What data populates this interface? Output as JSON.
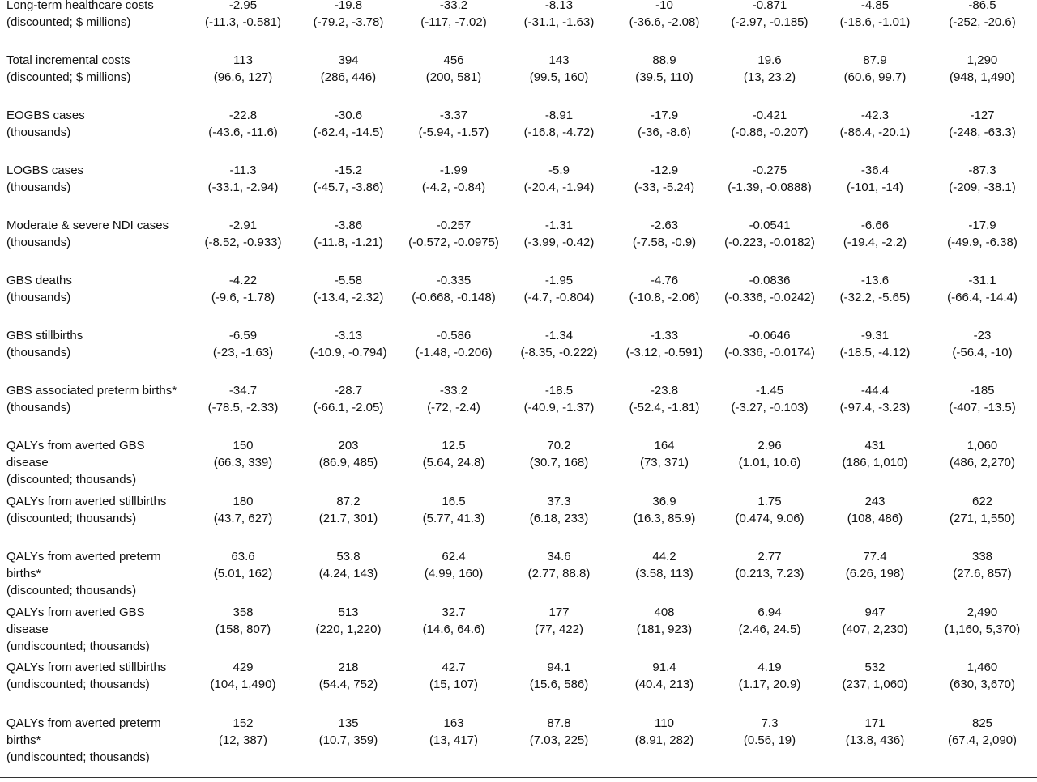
{
  "rows": [
    {
      "label": [
        "Long-term healthcare costs",
        "(discounted; $ millions)"
      ],
      "cells": [
        [
          "-2.95",
          "(-11.3, -0.581)"
        ],
        [
          "-19.8",
          "(-79.2, -3.78)"
        ],
        [
          "-33.2",
          "(-117, -7.02)"
        ],
        [
          "-8.13",
          "(-31.1, -1.63)"
        ],
        [
          "-10",
          "(-36.6, -2.08)"
        ],
        [
          "-0.871",
          "(-2.97, -0.185)"
        ],
        [
          "-4.85",
          "(-18.6, -1.01)"
        ],
        [
          "-86.5",
          "(-252, -20.6)"
        ]
      ]
    },
    {
      "label": [
        "Total incremental costs",
        "(discounted; $ millions)"
      ],
      "cells": [
        [
          "113",
          "(96.6, 127)"
        ],
        [
          "394",
          "(286, 446)"
        ],
        [
          "456",
          "(200, 581)"
        ],
        [
          "143",
          "(99.5, 160)"
        ],
        [
          "88.9",
          "(39.5, 110)"
        ],
        [
          "19.6",
          "(13, 23.2)"
        ],
        [
          "87.9",
          "(60.6, 99.7)"
        ],
        [
          "1,290",
          "(948, 1,490)"
        ]
      ]
    },
    {
      "label": [
        "EOGBS cases",
        "(thousands)"
      ],
      "cells": [
        [
          "-22.8",
          "(-43.6, -11.6)"
        ],
        [
          "-30.6",
          "(-62.4, -14.5)"
        ],
        [
          "-3.37",
          "(-5.94, -1.57)"
        ],
        [
          "-8.91",
          "(-16.8, -4.72)"
        ],
        [
          "-17.9",
          "(-36, -8.6)"
        ],
        [
          "-0.421",
          "(-0.86, -0.207)"
        ],
        [
          "-42.3",
          "(-86.4, -20.1)"
        ],
        [
          "-127",
          "(-248, -63.3)"
        ]
      ]
    },
    {
      "label": [
        "LOGBS cases",
        "(thousands)"
      ],
      "cells": [
        [
          "-11.3",
          "(-33.1, -2.94)"
        ],
        [
          "-15.2",
          "(-45.7, -3.86)"
        ],
        [
          "-1.99",
          "(-4.2, -0.84)"
        ],
        [
          "-5.9",
          "(-20.4, -1.94)"
        ],
        [
          "-12.9",
          "(-33, -5.24)"
        ],
        [
          "-0.275",
          "(-1.39, -0.0888)"
        ],
        [
          "-36.4",
          "(-101, -14)"
        ],
        [
          "-87.3",
          "(-209, -38.1)"
        ]
      ]
    },
    {
      "label": [
        "Moderate & severe NDI cases",
        "(thousands)"
      ],
      "cells": [
        [
          "-2.91",
          "(-8.52, -0.933)"
        ],
        [
          "-3.86",
          "(-11.8, -1.21)"
        ],
        [
          "-0.257",
          "(-0.572, -0.0975)"
        ],
        [
          "-1.31",
          "(-3.99, -0.42)"
        ],
        [
          "-2.63",
          "(-7.58, -0.9)"
        ],
        [
          "-0.0541",
          "(-0.223, -0.0182)"
        ],
        [
          "-6.66",
          "(-19.4, -2.2)"
        ],
        [
          "-17.9",
          "(-49.9, -6.38)"
        ]
      ]
    },
    {
      "label": [
        "GBS deaths",
        "(thousands)"
      ],
      "cells": [
        [
          "-4.22",
          "(-9.6, -1.78)"
        ],
        [
          "-5.58",
          "(-13.4, -2.32)"
        ],
        [
          "-0.335",
          "(-0.668, -0.148)"
        ],
        [
          "-1.95",
          "(-4.7, -0.804)"
        ],
        [
          "-4.76",
          "(-10.8, -2.06)"
        ],
        [
          "-0.0836",
          "(-0.336, -0.0242)"
        ],
        [
          "-13.6",
          "(-32.2, -5.65)"
        ],
        [
          "-31.1",
          "(-66.4, -14.4)"
        ]
      ]
    },
    {
      "label": [
        "GBS stillbirths",
        "(thousands)"
      ],
      "cells": [
        [
          "-6.59",
          "(-23, -1.63)"
        ],
        [
          "-3.13",
          "(-10.9, -0.794)"
        ],
        [
          "-0.586",
          "(-1.48, -0.206)"
        ],
        [
          "-1.34",
          "(-8.35, -0.222)"
        ],
        [
          "-1.33",
          "(-3.12, -0.591)"
        ],
        [
          "-0.0646",
          "(-0.336, -0.0174)"
        ],
        [
          "-9.31",
          "(-18.5, -4.12)"
        ],
        [
          "-23",
          "(-56.4, -10)"
        ]
      ]
    },
    {
      "label": [
        "GBS associated preterm births*",
        "(thousands)"
      ],
      "cells": [
        [
          "-34.7",
          "(-78.5, -2.33)"
        ],
        [
          "-28.7",
          "(-66.1, -2.05)"
        ],
        [
          "-33.2",
          "(-72, -2.4)"
        ],
        [
          "-18.5",
          "(-40.9, -1.37)"
        ],
        [
          "-23.8",
          "(-52.4, -1.81)"
        ],
        [
          "-1.45",
          "(-3.27, -0.103)"
        ],
        [
          "-44.4",
          "(-97.4, -3.23)"
        ],
        [
          "-185",
          "(-407, -13.5)"
        ]
      ]
    },
    {
      "label": [
        "QALYs from averted GBS",
        "disease",
        "(discounted; thousands)"
      ],
      "cells": [
        [
          "150",
          "(66.3, 339)"
        ],
        [
          "203",
          "(86.9, 485)"
        ],
        [
          "12.5",
          "(5.64, 24.8)"
        ],
        [
          "70.2",
          "(30.7, 168)"
        ],
        [
          "164",
          "(73, 371)"
        ],
        [
          "2.96",
          "(1.01, 10.6)"
        ],
        [
          "431",
          "(186, 1,010)"
        ],
        [
          "1,060",
          "(486, 2,270)"
        ]
      ]
    },
    {
      "label": [
        "QALYs from averted stillbirths",
        "(discounted; thousands)"
      ],
      "cells": [
        [
          "180",
          "(43.7, 627)"
        ],
        [
          "87.2",
          "(21.7, 301)"
        ],
        [
          "16.5",
          "(5.77, 41.3)"
        ],
        [
          "37.3",
          "(6.18, 233)"
        ],
        [
          "36.9",
          "(16.3, 85.9)"
        ],
        [
          "1.75",
          "(0.474, 9.06)"
        ],
        [
          "243",
          "(108, 486)"
        ],
        [
          "622",
          "(271, 1,550)"
        ]
      ]
    },
    {
      "label": [
        "QALYs from averted preterm",
        "births*",
        "(discounted; thousands)"
      ],
      "cells": [
        [
          "63.6",
          "(5.01, 162)"
        ],
        [
          "53.8",
          "(4.24, 143)"
        ],
        [
          "62.4",
          "(4.99, 160)"
        ],
        [
          "34.6",
          "(2.77, 88.8)"
        ],
        [
          "44.2",
          "(3.58, 113)"
        ],
        [
          "2.77",
          "(0.213, 7.23)"
        ],
        [
          "77.4",
          "(6.26, 198)"
        ],
        [
          "338",
          "(27.6, 857)"
        ]
      ]
    },
    {
      "label": [
        "QALYs from averted GBS",
        "disease",
        "(undiscounted; thousands)"
      ],
      "cells": [
        [
          "358",
          "(158, 807)"
        ],
        [
          "513",
          "(220, 1,220)"
        ],
        [
          "32.7",
          "(14.6, 64.6)"
        ],
        [
          "177",
          "(77, 422)"
        ],
        [
          "408",
          "(181, 923)"
        ],
        [
          "6.94",
          "(2.46, 24.5)"
        ],
        [
          "947",
          "(407, 2,230)"
        ],
        [
          "2,490",
          "(1,160, 5,370)"
        ]
      ]
    },
    {
      "label": [
        "QALYs from averted stillbirths",
        "(undiscounted; thousands)"
      ],
      "cells": [
        [
          "429",
          "(104, 1,490)"
        ],
        [
          "218",
          "(54.4, 752)"
        ],
        [
          "42.7",
          "(15, 107)"
        ],
        [
          "94.1",
          "(15.6, 586)"
        ],
        [
          "91.4",
          "(40.4, 213)"
        ],
        [
          "4.19",
          "(1.17, 20.9)"
        ],
        [
          "532",
          "(237, 1,060)"
        ],
        [
          "1,460",
          "(630, 3,670)"
        ]
      ]
    },
    {
      "label": [
        "QALYs from averted preterm",
        "births*",
        "(undiscounted; thousands)"
      ],
      "cells": [
        [
          "152",
          "(12, 387)"
        ],
        [
          "135",
          "(10.7, 359)"
        ],
        [
          "163",
          "(13, 417)"
        ],
        [
          "87.8",
          "(7.03, 225)"
        ],
        [
          "110",
          "(8.91, 282)"
        ],
        [
          "7.3",
          "(0.56, 19)"
        ],
        [
          "171",
          "(13.8, 436)"
        ],
        [
          "825",
          "(67.4, 2,090)"
        ]
      ]
    }
  ]
}
